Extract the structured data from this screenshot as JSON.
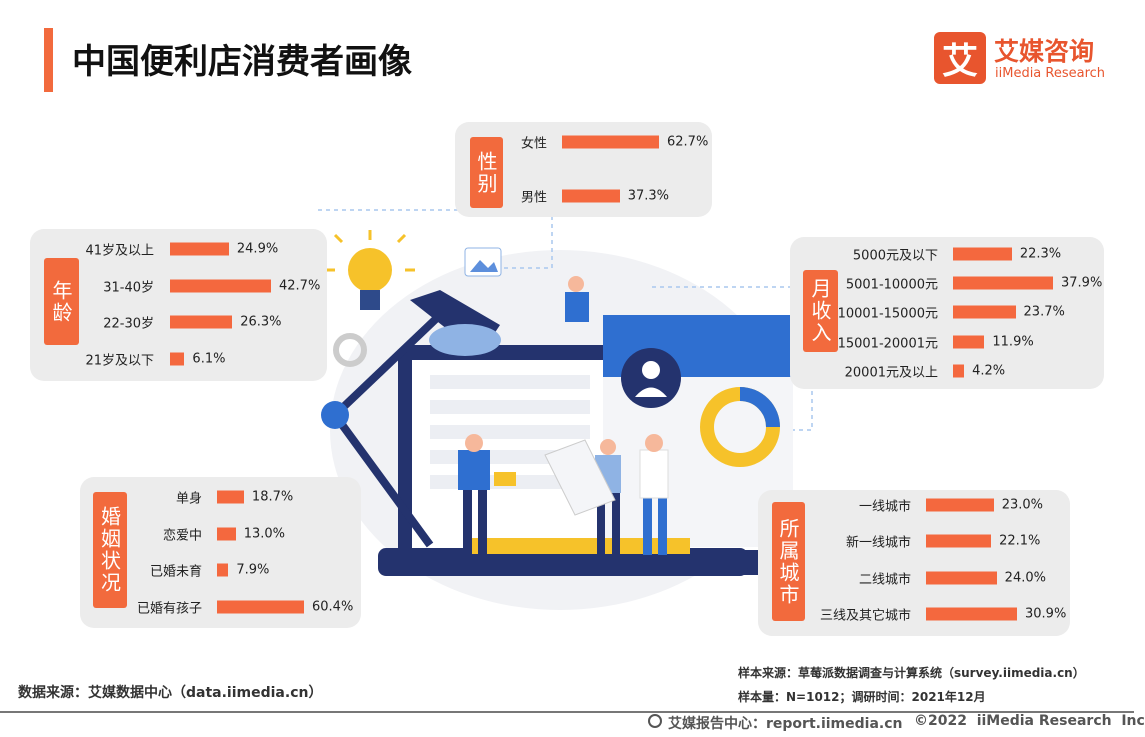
{
  "header": {
    "title": "中国便利店消费者画像",
    "logo_mark": "艾",
    "logo_name": "艾媒咨询",
    "logo_sub": "iiMedia Research"
  },
  "chart_data": [
    {
      "type": "bar",
      "title": "性别",
      "color": "#f4683e",
      "categories": [
        "女性",
        "男性"
      ],
      "values": [
        62.7,
        37.3
      ],
      "value_labels": [
        "62.7%",
        "37.3%"
      ]
    },
    {
      "type": "bar",
      "title": "年龄",
      "color": "#f4683e",
      "categories": [
        "41岁及以上",
        "31-40岁",
        "22-30岁",
        "21岁及以下"
      ],
      "values": [
        24.9,
        42.7,
        26.3,
        6.1
      ],
      "value_labels": [
        "24.9%",
        "42.7%",
        "26.3%",
        "6.1%"
      ]
    },
    {
      "type": "bar",
      "title": "月收入",
      "color": "#f4683e",
      "categories": [
        "5000元及以下",
        "5001-10000元",
        "10001-15000元",
        "15001-20001元",
        "20001元及以上"
      ],
      "values": [
        22.3,
        37.9,
        23.7,
        11.9,
        4.2
      ],
      "value_labels": [
        "22.3%",
        "37.9%",
        "23.7%",
        "11.9%",
        "4.2%"
      ]
    },
    {
      "type": "bar",
      "title": "婚姻状况",
      "color": "#f4683e",
      "categories": [
        "单身",
        "恋爱中",
        "已婚未育",
        "已婚有孩子"
      ],
      "values": [
        18.7,
        13.0,
        7.9,
        60.4
      ],
      "value_labels": [
        "18.7%",
        "13.0%",
        "7.9%",
        "60.4%"
      ]
    },
    {
      "type": "bar",
      "title": "所属城市",
      "color": "#f4683e",
      "categories": [
        "一线城市",
        "新一线城市",
        "二线城市",
        "三线及其它城市"
      ],
      "values": [
        23.0,
        22.1,
        24.0,
        30.9
      ],
      "value_labels": [
        "23.0%",
        "22.1%",
        "24.0%",
        "30.9%"
      ]
    }
  ],
  "footer": {
    "source": "数据来源：艾媒数据中心（data.iimedia.cn）",
    "sample_source": "样本来源：草莓派数据调查与计算系统（survey.iimedia.cn）",
    "sample_size": "样本量：N=1012；调研时间：2021年12月",
    "report_center": "艾媒报告中心：report.iimedia.cn",
    "copyright": "©2022  iiMedia Research  Inc"
  }
}
